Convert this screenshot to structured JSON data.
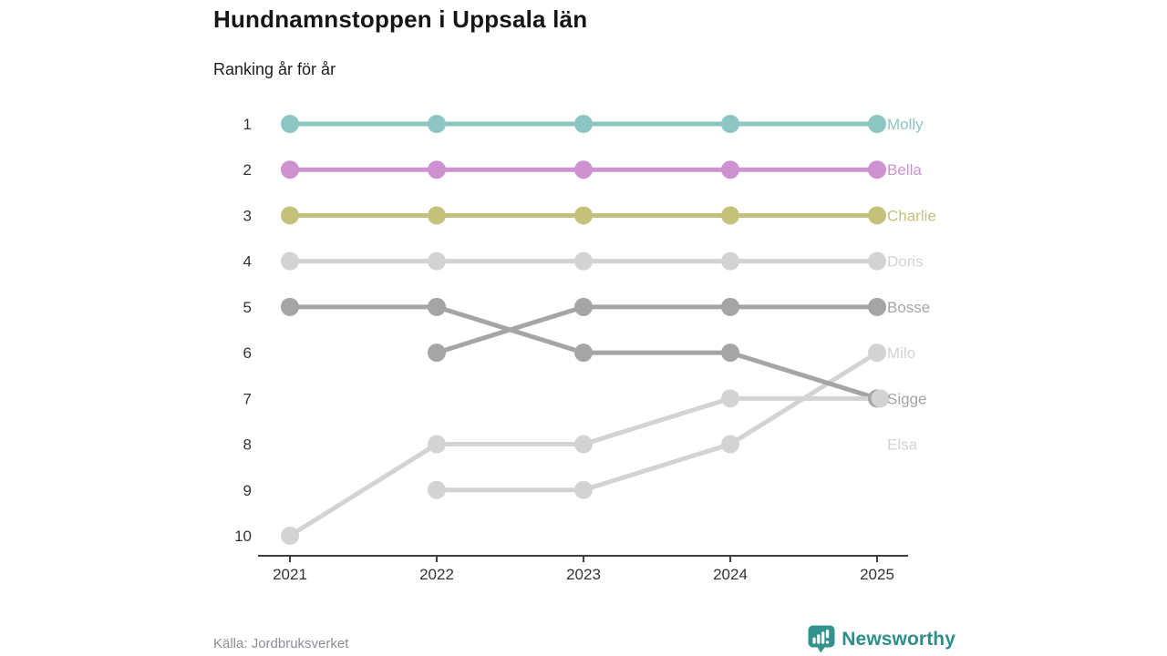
{
  "header": {
    "title": "Hundnamnstoppen i Uppsala län",
    "subtitle": "Ranking år för år"
  },
  "footer": {
    "source": "Källa: Jordbruksverket",
    "brand": {
      "name": "Newsworthy",
      "color": "#2f8e88",
      "icon": "newsworthy-speech-bubble-bar-chart-icon"
    }
  },
  "colors": {
    "axis_line": "#3f3f3f",
    "tick_text": "#333333",
    "light_series": "#d3d3d3",
    "dark_series": "#a5a5a5"
  },
  "chart_data": {
    "type": "line",
    "variant": "bump-ranking",
    "title": "Hundnamnstoppen i Uppsala län",
    "subtitle": "Ranking år för år",
    "x": [
      2021,
      2022,
      2023,
      2024,
      2025
    ],
    "y_ticks": [
      1,
      2,
      3,
      4,
      5,
      6,
      7,
      8,
      9,
      10
    ],
    "y_axis_inverted": true,
    "ylim": [
      1,
      10
    ],
    "grid": false,
    "legend_position": "end-of-line-labels",
    "series": [
      {
        "name": "Doris",
        "color": "#d3d3d3",
        "values": [
          4,
          4,
          4,
          4,
          4
        ],
        "label_rank": 4
      },
      {
        "name": "Milo",
        "color": "#d3d3d3",
        "values": [
          null,
          9,
          9,
          8,
          6
        ],
        "label_rank": 6
      },
      {
        "name": "Sigge",
        "color": "#a5a5a5",
        "values": [
          5,
          5,
          6,
          6,
          7
        ],
        "label_rank": 7
      },
      {
        "name": "Bosse",
        "color": "#a5a5a5",
        "values": [
          null,
          6,
          5,
          5,
          5
        ],
        "label_rank": 5
      },
      {
        "name": "Elsa",
        "color": "#d3d3d3",
        "values": [
          10,
          8,
          8,
          7,
          7
        ],
        "label_rank": 8
      },
      {
        "name": "Charlie",
        "color": "#c4c17b",
        "values": [
          3,
          3,
          3,
          3,
          3
        ],
        "label_rank": 3
      },
      {
        "name": "Bella",
        "color": "#cf92d1",
        "values": [
          2,
          2,
          2,
          2,
          2
        ],
        "label_rank": 2
      },
      {
        "name": "Molly",
        "color": "#8cc6c3",
        "values": [
          1,
          1,
          1,
          1,
          1
        ],
        "label_rank": 1
      }
    ]
  }
}
